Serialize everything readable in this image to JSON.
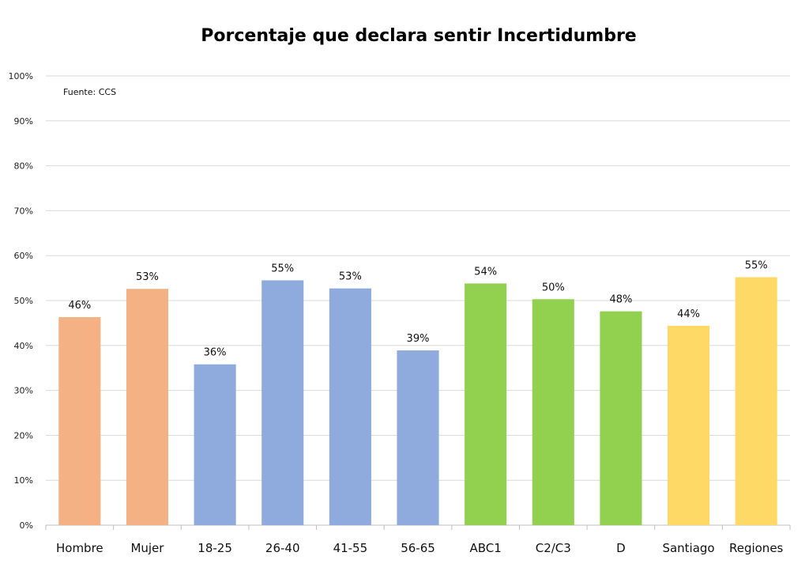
{
  "chart_data": {
    "type": "bar",
    "title": "Porcentaje que declara sentir Incertidumbre",
    "source_note": "Fuente: CCS",
    "xlabel": "",
    "ylabel": "",
    "ylim": [
      0,
      100
    ],
    "y_ticks": [
      "0%",
      "10%",
      "20%",
      "30%",
      "40%",
      "50%",
      "60%",
      "70%",
      "80%",
      "90%",
      "100%"
    ],
    "grid": true,
    "categories": [
      "Hombre",
      "Mujer",
      "18-25",
      "26-40",
      "41-55",
      "56-65",
      "ABC1",
      "C2/C3",
      "D",
      "Santiago",
      "Regiones"
    ],
    "values": [
      46.3,
      52.6,
      35.8,
      54.5,
      52.7,
      38.9,
      53.8,
      50.3,
      47.6,
      44.4,
      55.2
    ],
    "data_labels": [
      "46%",
      "53%",
      "36%",
      "55%",
      "53%",
      "39%",
      "54%",
      "50%",
      "48%",
      "44%",
      "55%"
    ],
    "colors": [
      "#f4b183",
      "#f4b183",
      "#8faadc",
      "#8faadc",
      "#8faadc",
      "#8faadc",
      "#92d050",
      "#92d050",
      "#92d050",
      "#ffd966",
      "#ffd966"
    ],
    "legend": "none"
  }
}
